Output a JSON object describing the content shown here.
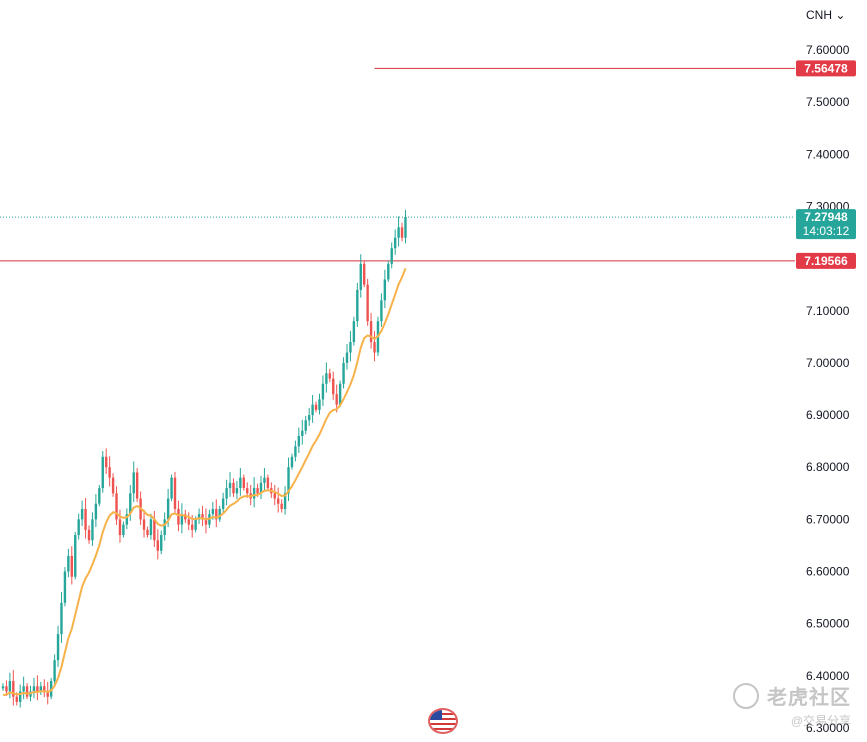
{
  "header": {
    "currency_label": "CNH",
    "currency_caret": "⌄"
  },
  "watermark": {
    "main": "老虎社区",
    "sub": "@交易分享"
  },
  "icons": {
    "currency_dropdown": "chevron-down-icon",
    "flag": "us-flag-icon",
    "watermark_logo": "tiger-logo-icon"
  },
  "colors": {
    "up": "#26a69a",
    "down": "#ef5350",
    "ma": "#f7b24a",
    "hline": "#d8323c",
    "price_tag_current": "#26a69a",
    "price_tag_line": "#e23b47",
    "axis_text": "#131722"
  },
  "chart_data": {
    "type": "candlestick",
    "symbol": "CNH",
    "ylim": [
      6.29,
      7.63
    ],
    "y_ticks": [
      "7.60000",
      "7.50000",
      "7.40000",
      "7.30000",
      "7.20000",
      "7.10000",
      "7.00000",
      "6.90000",
      "6.80000",
      "6.70000",
      "6.60000",
      "6.50000",
      "6.40000",
      "6.30000"
    ],
    "y_tick_values": [
      7.6,
      7.5,
      7.4,
      7.3,
      7.2,
      7.1,
      7.0,
      6.9,
      6.8,
      6.7,
      6.6,
      6.5,
      6.4,
      6.3
    ],
    "current_price": {
      "value": 7.27948,
      "label": "7.27948",
      "countdown": "14:03:12"
    },
    "horizontal_lines": [
      {
        "value": 7.56478,
        "label": "7.56478",
        "start_bar": 108
      },
      {
        "value": 7.19566,
        "label": "7.19566",
        "start_bar": 0
      }
    ],
    "close_path": [
      6.38,
      6.37,
      6.39,
      6.36,
      6.35,
      6.37,
      6.38,
      6.36,
      6.37,
      6.38,
      6.37,
      6.38,
      6.37,
      6.36,
      6.39,
      6.43,
      6.48,
      6.54,
      6.6,
      6.63,
      6.59,
      6.67,
      6.7,
      6.72,
      6.68,
      6.66,
      6.7,
      6.73,
      6.76,
      6.82,
      6.8,
      6.78,
      6.75,
      6.7,
      6.67,
      6.69,
      6.71,
      6.75,
      6.79,
      6.74,
      6.7,
      6.68,
      6.67,
      6.7,
      6.66,
      6.64,
      6.67,
      6.7,
      6.74,
      6.78,
      6.72,
      6.69,
      6.71,
      6.7,
      6.69,
      6.68,
      6.7,
      6.71,
      6.7,
      6.69,
      6.71,
      6.72,
      6.7,
      6.72,
      6.74,
      6.76,
      6.77,
      6.75,
      6.76,
      6.78,
      6.76,
      6.75,
      6.74,
      6.76,
      6.75,
      6.77,
      6.78,
      6.76,
      6.75,
      6.74,
      6.73,
      6.72,
      6.75,
      6.8,
      6.82,
      6.84,
      6.86,
      6.87,
      6.89,
      6.9,
      6.92,
      6.91,
      6.93,
      6.96,
      6.98,
      6.97,
      6.94,
      6.92,
      6.96,
      7.0,
      7.02,
      7.04,
      7.08,
      7.14,
      7.19,
      7.15,
      7.08,
      7.04,
      7.02,
      7.08,
      7.12,
      7.16,
      7.19,
      7.22,
      7.24,
      7.26,
      7.24,
      7.28
    ],
    "ma_start_value": 6.36,
    "ma_smoothing": 0.15
  }
}
